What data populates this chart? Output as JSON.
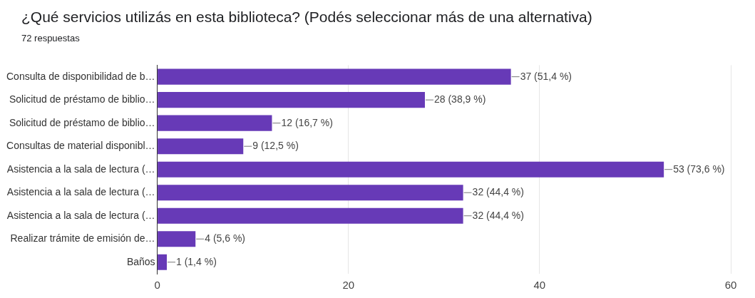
{
  "chart_data": {
    "type": "bar",
    "orientation": "horizontal",
    "title": "¿Qué servicios utilizás en esta biblioteca? (Podés seleccionar más de una alternativa)",
    "subtitle": "72 respuestas",
    "categories": [
      "Consulta de disponibilidad de b…",
      "Solicitud de préstamo de biblio…",
      "Solicitud de préstamo de biblio…",
      "Consultas de material disponibl…",
      "Asistencia a la sala de lectura (…",
      "Asistencia a la sala de lectura (…",
      "Asistencia a la sala de lectura (…",
      "Realizar trámite de emisión de…",
      "Baños"
    ],
    "values": [
      37,
      28,
      12,
      9,
      53,
      32,
      32,
      4,
      1
    ],
    "value_labels": [
      "37 (51,4 %)",
      "28 (38,9 %)",
      "12 (16,7 %)",
      "9 (12,5 %)",
      "53 (73,6 %)",
      "32 (44,4 %)",
      "32 (44,4 %)",
      "4 (5,6 %)",
      "1 (1,4 %)"
    ],
    "color": "#673ab7",
    "xlim": [
      0,
      60
    ],
    "xticks": [
      0,
      20,
      40,
      60
    ],
    "grid": "x",
    "legend": false
  }
}
